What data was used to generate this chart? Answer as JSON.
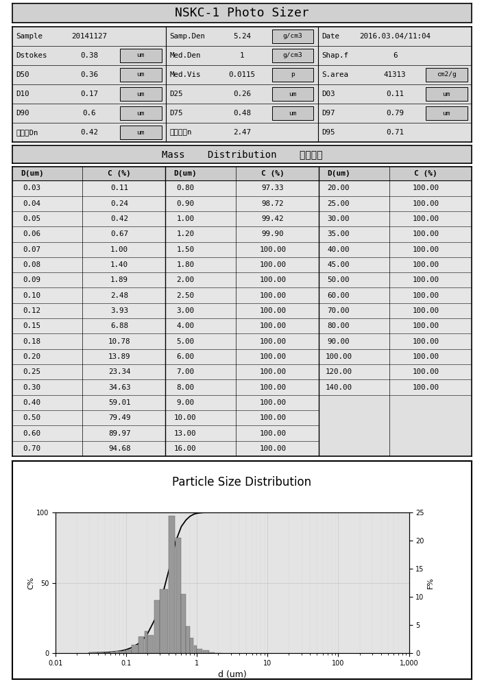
{
  "title": "NSKC-1 Photo Sizer",
  "mass_dist_title": "Mass    Distribution    质量分布",
  "table_col1_d": [
    0.03,
    0.04,
    0.05,
    0.06,
    0.07,
    0.08,
    0.09,
    0.1,
    0.12,
    0.15,
    0.18,
    0.2,
    0.25,
    0.3,
    0.4,
    0.5,
    0.6,
    0.7
  ],
  "table_col1_c": [
    0.11,
    0.24,
    0.42,
    0.67,
    1.0,
    1.4,
    1.89,
    2.48,
    3.93,
    6.88,
    10.78,
    13.89,
    23.34,
    34.63,
    59.01,
    79.49,
    89.97,
    94.68
  ],
  "table_col2_d": [
    0.8,
    0.9,
    1.0,
    1.2,
    1.5,
    1.8,
    2.0,
    2.5,
    3.0,
    4.0,
    5.0,
    6.0,
    7.0,
    8.0,
    9.0,
    10.0,
    13.0,
    16.0
  ],
  "table_col2_c": [
    97.33,
    98.72,
    99.42,
    99.9,
    100.0,
    100.0,
    100.0,
    100.0,
    100.0,
    100.0,
    100.0,
    100.0,
    100.0,
    100.0,
    100.0,
    100.0,
    100.0,
    100.0
  ],
  "table_col3_d": [
    20.0,
    25.0,
    30.0,
    35.0,
    40.0,
    45.0,
    50.0,
    60.0,
    70.0,
    80.0,
    90.0,
    100.0,
    120.0,
    140.0
  ],
  "table_col3_c": [
    100.0,
    100.0,
    100.0,
    100.0,
    100.0,
    100.0,
    100.0,
    100.0,
    100.0,
    100.0,
    100.0,
    100.0,
    100.0,
    100.0
  ],
  "chart_title": "Particle Size Distribution",
  "chart_xlabel": "d (um)",
  "chart_ylabel_left": "C%",
  "chart_ylabel_right": "F%",
  "bar_data_d": [
    0.03,
    0.04,
    0.05,
    0.06,
    0.07,
    0.08,
    0.09,
    0.1,
    0.12,
    0.15,
    0.18,
    0.2,
    0.25,
    0.3,
    0.4,
    0.5,
    0.6,
    0.7,
    0.8,
    0.9,
    1.0,
    1.2,
    1.5,
    1.8,
    2.0
  ],
  "bar_data_f": [
    0.11,
    0.13,
    0.18,
    0.25,
    0.33,
    0.4,
    0.49,
    0.59,
    1.45,
    2.95,
    3.9,
    3.11,
    9.45,
    11.29,
    24.38,
    20.48,
    10.48,
    4.71,
    2.65,
    1.39,
    0.7,
    0.48,
    0.1,
    0.0,
    0.0
  ],
  "bg_light": "#e0e0e0",
  "bg_medium": "#d0d0d0",
  "cell_bg": "#e8e8e8",
  "white": "#ffffff",
  "col1_rows": [
    [
      "Sample",
      "20141127",
      "",
      false
    ],
    [
      "Dstokes",
      "0.38",
      "um",
      true
    ],
    [
      "D50",
      "0.36",
      "um",
      true
    ],
    [
      "D10",
      "0.17",
      "um",
      true
    ],
    [
      "D90",
      "0.6",
      "um",
      true
    ],
    [
      "特征径Dn",
      "0.42",
      "um",
      true
    ]
  ],
  "col2_rows": [
    [
      "Samp.Den",
      "5.24",
      "g/cm3",
      true
    ],
    [
      "Med.Den",
      "1",
      "g/cm3",
      true
    ],
    [
      "Med.Vis",
      "0.0115",
      "p",
      true
    ],
    [
      "D25",
      "0.26",
      "um",
      true
    ],
    [
      "D75",
      "0.48",
      "um",
      true
    ],
    [
      "均匀指数n",
      "2.47",
      "",
      false
    ]
  ],
  "col3_rows": [
    [
      "Date",
      "2016.03.04/11:04",
      "",
      false
    ],
    [
      "Shap.f",
      "6",
      "",
      false
    ],
    [
      "S.area",
      "41313",
      "cm2/g",
      true
    ],
    [
      "D03",
      "0.11",
      "um",
      true
    ],
    [
      "D97",
      "0.79",
      "um",
      true
    ],
    [
      "D95",
      "0.71",
      "",
      false
    ]
  ]
}
